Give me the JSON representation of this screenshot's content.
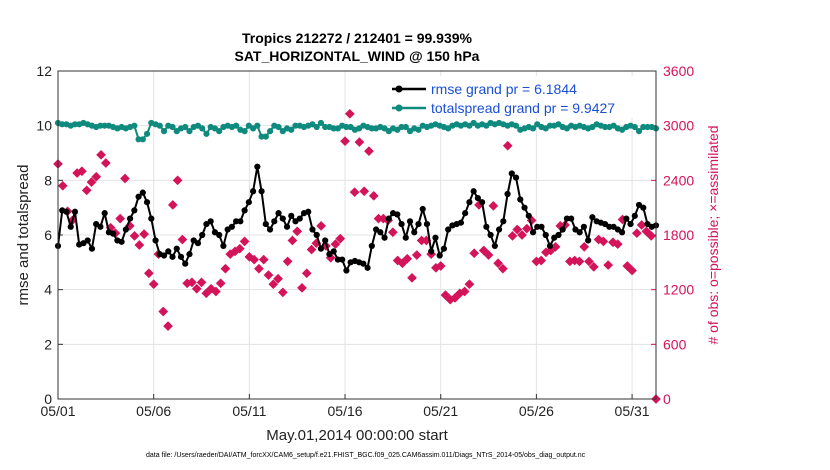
{
  "chart_data": {
    "type": "line",
    "title": "Tropics 212272 / 212401 = 99.939%",
    "subtitle": "SAT_HORIZONTAL_WIND @ 150 hPa",
    "xlabel": "May.01,2014 00:00:00 start",
    "ylabel": "rmse and totalspread",
    "ylabel_right": "# of obs: o=possible; ×=assimilated",
    "xtick_labels": [
      "05/01",
      "05/06",
      "05/11",
      "05/16",
      "05/21",
      "05/26",
      "05/31"
    ],
    "xticks": [
      0,
      5,
      10,
      15,
      20,
      25,
      30
    ],
    "xlim": [
      0,
      31.25
    ],
    "ylim": [
      0,
      12
    ],
    "yticks": [
      0,
      2,
      4,
      6,
      8,
      10,
      12
    ],
    "ylim_right": [
      0,
      3600
    ],
    "yticks_right": [
      0,
      600,
      1200,
      1800,
      2400,
      3000,
      3600
    ],
    "grid": true,
    "legend_position": "top-right",
    "footnote": "data file: /Users/raeder/DAI/ATM_forcXX/CAM6_setup/f.e21.FHIST_BGC.f09_025.CAM6assim.011/Diags_NTrS_2014-05/obs_diag_output.nc",
    "colors": {
      "rmse": "#000000",
      "spread": "#0e8a7e",
      "obs": "#d4145a",
      "legend_text": "#1a4fd6"
    },
    "series": [
      {
        "name": "rmse grand pr = 6.1844",
        "color": "#000000",
        "values": [
          5.6,
          6.9,
          6.85,
          6.3,
          6.85,
          5.65,
          5.7,
          5.8,
          5.5,
          6.4,
          6.3,
          6.8,
          6.1,
          6.05,
          5.8,
          5.75,
          6.2,
          6.6,
          6.9,
          7.4,
          7.55,
          7.2,
          6.6,
          5.8,
          5.3,
          5.25,
          5.4,
          5.2,
          5.5,
          5.2,
          4.95,
          5.3,
          5.8,
          5.7,
          6.0,
          6.4,
          6.5,
          6.1,
          6.0,
          5.6,
          6.2,
          6.3,
          6.5,
          6.5,
          6.9,
          7.2,
          7.6,
          8.5,
          7.6,
          6.4,
          6.2,
          6.5,
          6.8,
          6.6,
          6.3,
          6.7,
          6.5,
          6.6,
          6.8,
          6.85,
          6.2,
          6.0,
          5.5,
          5.8,
          5.3,
          5.4,
          5.1,
          5.1,
          4.7,
          5.0,
          5.05,
          5.0,
          4.95,
          4.8,
          5.6,
          6.2,
          6.1,
          5.9,
          6.6,
          6.8,
          6.75,
          6.4,
          5.9,
          6.5,
          6.1,
          6.4,
          6.95,
          6.4,
          5.4,
          5.9,
          5.25,
          5.5,
          6.2,
          6.35,
          6.4,
          6.45,
          6.8,
          7.2,
          7.6,
          7.35,
          7.2,
          6.3,
          6.0,
          5.6,
          6.2,
          6.5,
          7.5,
          8.25,
          8.1,
          7.3,
          7.0,
          6.7,
          6.1,
          6.3,
          6.3,
          6.0,
          5.6,
          5.9,
          6.0,
          6.2,
          6.6,
          6.6,
          6.2,
          6.1,
          6.3,
          5.8,
          6.65,
          6.5,
          6.45,
          6.4,
          6.3,
          6.3,
          6.2,
          6.1,
          6.6,
          6.4,
          6.7,
          7.1,
          7.0,
          6.4,
          6.3,
          6.35
        ]
      },
      {
        "name": "totalspread grand pr = 9.9427",
        "color": "#0e8a7e",
        "values": [
          10.1,
          10.05,
          10.05,
          10.0,
          10.05,
          10.05,
          10.1,
          10.05,
          10.0,
          9.95,
          10.0,
          10.0,
          10.0,
          9.95,
          9.9,
          9.95,
          9.9,
          9.95,
          10.0,
          9.5,
          9.5,
          9.7,
          10.1,
          10.05,
          10.0,
          9.8,
          10.0,
          9.95,
          9.8,
          9.9,
          9.95,
          9.8,
          9.95,
          10.0,
          9.9,
          9.7,
          9.95,
          9.9,
          9.8,
          9.95,
          10.0,
          9.95,
          10.0,
          9.85,
          9.8,
          10.0,
          9.9,
          10.0,
          9.6,
          9.6,
          9.8,
          10.0,
          9.95,
          9.8,
          9.9,
          9.85,
          10.0,
          10.0,
          9.95,
          10.0,
          10.05,
          9.95,
          10.1,
          9.95,
          9.95,
          9.9,
          9.9,
          10.0,
          9.95,
          9.95,
          9.85,
          9.9,
          10.0,
          9.95,
          9.9,
          9.9,
          9.95,
          9.9,
          9.8,
          9.9,
          9.85,
          9.95,
          9.95,
          9.8,
          9.9,
          9.85,
          10.0,
          9.95,
          10.0,
          10.05,
          10.0,
          9.95,
          9.9,
          10.0,
          10.05,
          10.0,
          10.05,
          10.0,
          10.1,
          10.0,
          10.05,
          10.0,
          10.1,
          10.05,
          10.1,
          10.05,
          10.0,
          10.05,
          10.0,
          9.85,
          9.9,
          9.95,
          9.9,
          10.05,
          9.95,
          9.9,
          10.0,
          10.0,
          10.05,
          9.95,
          9.9,
          10.0,
          9.95,
          10.0,
          9.95,
          9.9,
          9.95,
          10.05,
          10.0,
          9.95,
          9.95,
          10.0,
          9.9,
          9.85,
          9.95,
          10.0,
          9.95,
          9.8,
          9.95,
          9.95,
          9.95,
          9.9
        ]
      },
      {
        "name": "# of obs",
        "type": "scatter",
        "axis": "right",
        "color": "#d4145a",
        "points": [
          [
            0,
            2580
          ],
          [
            0.25,
            2340
          ],
          [
            0.5,
            2060
          ],
          [
            0.75,
            1960
          ],
          [
            1.0,
            2480
          ],
          [
            1.25,
            2500
          ],
          [
            1.5,
            2290
          ],
          [
            1.75,
            2380
          ],
          [
            2.0,
            2440
          ],
          [
            2.25,
            2680
          ],
          [
            2.5,
            2590
          ],
          [
            2.75,
            1880
          ],
          [
            3.0,
            1820
          ],
          [
            3.25,
            1980
          ],
          [
            3.5,
            2420
          ],
          [
            3.75,
            1900
          ],
          [
            4.0,
            1790
          ],
          [
            4.25,
            1690
          ],
          [
            4.5,
            1810
          ],
          [
            4.75,
            1380
          ],
          [
            5.0,
            1260
          ],
          [
            5.25,
            1590
          ],
          [
            5.5,
            960
          ],
          [
            5.75,
            800
          ],
          [
            6.0,
            2130
          ],
          [
            6.25,
            2400
          ],
          [
            6.5,
            1750
          ],
          [
            6.75,
            1270
          ],
          [
            7.0,
            1280
          ],
          [
            7.25,
            1210
          ],
          [
            7.5,
            1280
          ],
          [
            7.75,
            1160
          ],
          [
            8.0,
            1210
          ],
          [
            8.25,
            1180
          ],
          [
            8.5,
            1270
          ],
          [
            8.75,
            1430
          ],
          [
            9.0,
            1590
          ],
          [
            9.25,
            1620
          ],
          [
            9.5,
            1650
          ],
          [
            9.75,
            1730
          ],
          [
            10.0,
            1560
          ],
          [
            10.25,
            1530
          ],
          [
            10.5,
            1430
          ],
          [
            10.75,
            1530
          ],
          [
            11.0,
            1360
          ],
          [
            11.25,
            1260
          ],
          [
            11.5,
            1320
          ],
          [
            11.75,
            1170
          ],
          [
            12.0,
            1510
          ],
          [
            12.25,
            1740
          ],
          [
            12.5,
            1840
          ],
          [
            12.75,
            1220
          ],
          [
            13.0,
            1380
          ],
          [
            13.25,
            1640
          ],
          [
            13.5,
            1710
          ],
          [
            13.75,
            1900
          ],
          [
            14.0,
            1680
          ],
          [
            14.25,
            1550
          ],
          [
            14.5,
            1700
          ],
          [
            14.75,
            1760
          ],
          [
            15.0,
            2830
          ],
          [
            15.25,
            3130
          ],
          [
            15.5,
            2270
          ],
          [
            15.75,
            2820
          ],
          [
            16.0,
            2280
          ],
          [
            16.25,
            2720
          ],
          [
            16.5,
            2230
          ],
          [
            16.75,
            1980
          ],
          [
            17.0,
            1980
          ],
          [
            17.25,
            1960
          ],
          [
            17.5,
            1830
          ],
          [
            17.75,
            1520
          ],
          [
            18.0,
            1490
          ],
          [
            18.25,
            1540
          ],
          [
            18.5,
            1330
          ],
          [
            18.75,
            1580
          ],
          [
            19.0,
            1740
          ],
          [
            19.25,
            1740
          ],
          [
            19.5,
            1590
          ],
          [
            19.75,
            1440
          ],
          [
            20.0,
            1460
          ],
          [
            20.25,
            1140
          ],
          [
            20.5,
            1090
          ],
          [
            20.75,
            1110
          ],
          [
            21.0,
            1160
          ],
          [
            21.25,
            1180
          ],
          [
            21.5,
            1260
          ],
          [
            21.75,
            1600
          ],
          [
            22.0,
            2130
          ],
          [
            22.25,
            1630
          ],
          [
            22.5,
            1580
          ],
          [
            22.75,
            2120
          ],
          [
            23.0,
            1490
          ],
          [
            23.25,
            1430
          ],
          [
            23.5,
            2780
          ],
          [
            23.75,
            1790
          ],
          [
            24.0,
            1860
          ],
          [
            24.25,
            1800
          ],
          [
            24.5,
            1870
          ],
          [
            24.75,
            1960
          ],
          [
            25.0,
            1510
          ],
          [
            25.25,
            1520
          ],
          [
            25.5,
            1610
          ],
          [
            25.75,
            1630
          ],
          [
            26.0,
            1670
          ],
          [
            26.25,
            1900
          ],
          [
            26.5,
            1910
          ],
          [
            26.75,
            1510
          ],
          [
            27.0,
            1520
          ],
          [
            27.25,
            1510
          ],
          [
            27.5,
            1670
          ],
          [
            27.75,
            1510
          ],
          [
            28.0,
            1450
          ],
          [
            28.25,
            1750
          ],
          [
            28.5,
            1730
          ],
          [
            28.75,
            1470
          ],
          [
            29.0,
            1720
          ],
          [
            29.25,
            1700
          ],
          [
            29.5,
            1970
          ],
          [
            29.75,
            1460
          ],
          [
            30.0,
            1410
          ],
          [
            30.25,
            1820
          ],
          [
            30.5,
            1910
          ],
          [
            30.75,
            1840
          ],
          [
            31.0,
            1790
          ],
          [
            31.25,
            0
          ]
        ]
      }
    ]
  }
}
